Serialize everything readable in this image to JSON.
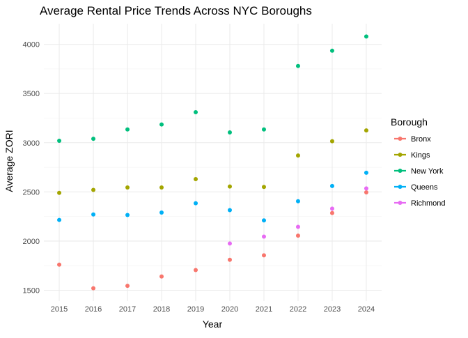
{
  "chart_data": {
    "type": "scatter",
    "title": "Average Rental Price Trends Across NYC Boroughs",
    "xlabel": "Year",
    "ylabel": "Average ZORI",
    "x": [
      2015,
      2016,
      2017,
      2018,
      2019,
      2020,
      2021,
      2022,
      2023,
      2024
    ],
    "x_tick_labels": [
      "2015",
      "2016",
      "2017",
      "2018",
      "2019",
      "2020",
      "2021",
      "2022",
      "2023",
      "2024"
    ],
    "xlim": [
      2014.55,
      2024.45
    ],
    "y_ticks": [
      1500,
      2000,
      2500,
      3000,
      3500,
      4000
    ],
    "y_tick_labels": [
      "1500",
      "2000",
      "2500",
      "3000",
      "3500",
      "4000"
    ],
    "ylim": [
      1390,
      4210
    ],
    "grid": true,
    "legend": {
      "title": "Borough",
      "placement": "right"
    },
    "series": [
      {
        "name": "Bronx",
        "color": "#F8766D",
        "values": [
          1760,
          1520,
          1545,
          1640,
          1705,
          1810,
          1855,
          2055,
          2285,
          2495
        ]
      },
      {
        "name": "Kings",
        "color": "#A3A500",
        "values": [
          2490,
          2520,
          2545,
          2545,
          2630,
          2555,
          2550,
          2870,
          3015,
          3125
        ]
      },
      {
        "name": "New York",
        "color": "#00BF7D",
        "values": [
          3020,
          3040,
          3135,
          3185,
          3310,
          3105,
          3135,
          3780,
          3935,
          4080
        ]
      },
      {
        "name": "Queens",
        "color": "#00B0F6",
        "values": [
          2215,
          2270,
          2265,
          2290,
          2385,
          2315,
          2210,
          2405,
          2560,
          2695
        ]
      },
      {
        "name": "Richmond",
        "color": "#E76BF3",
        "values": [
          null,
          null,
          null,
          null,
          null,
          1975,
          2045,
          2145,
          2330,
          2535
        ]
      }
    ]
  }
}
